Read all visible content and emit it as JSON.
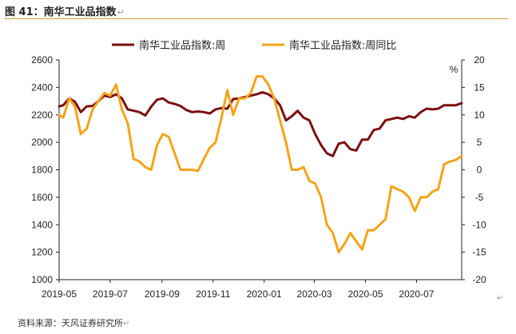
{
  "header": {
    "title": "图 41：南华工业品指数",
    "return_mark": "↵"
  },
  "footer": {
    "source": "资料来源：天风证券研究所",
    "return_mark": "↵"
  },
  "corner": {
    "return_mark": "↵"
  },
  "colors": {
    "primary": "#7b0f12",
    "secondary": "#f4a418",
    "axis": "#222222"
  },
  "chart_data": {
    "type": "line",
    "grid": false,
    "legend": "top-center",
    "x_tick_labels": [
      "2019-05",
      "2019-07",
      "2019-09",
      "2019-11",
      "2020-01",
      "2020-03",
      "2020-05",
      "2020-07"
    ],
    "y_left": {
      "range": [
        1000,
        2600
      ],
      "ticks": [
        1000,
        1200,
        1400,
        1600,
        1800,
        2000,
        2200,
        2400,
        2600
      ]
    },
    "y_right": {
      "label": "%",
      "range": [
        -20,
        20
      ],
      "ticks": [
        -20,
        -15,
        -10,
        -5,
        0,
        5,
        10,
        15,
        20
      ]
    },
    "x": [
      "2019-05-01",
      "2019-05-06",
      "2019-05-13",
      "2019-05-20",
      "2019-05-27",
      "2019-06-03",
      "2019-06-10",
      "2019-06-17",
      "2019-06-24",
      "2019-07-01",
      "2019-07-08",
      "2019-07-15",
      "2019-07-22",
      "2019-07-29",
      "2019-08-05",
      "2019-08-12",
      "2019-08-19",
      "2019-08-26",
      "2019-09-02",
      "2019-09-09",
      "2019-09-16",
      "2019-09-23",
      "2019-09-30",
      "2019-10-07",
      "2019-10-14",
      "2019-10-21",
      "2019-10-28",
      "2019-11-04",
      "2019-11-11",
      "2019-11-18",
      "2019-11-25",
      "2019-12-02",
      "2019-12-09",
      "2019-12-16",
      "2019-12-23",
      "2019-12-30",
      "2020-01-06",
      "2020-01-13",
      "2020-01-20",
      "2020-01-27",
      "2020-02-03",
      "2020-02-10",
      "2020-02-17",
      "2020-02-24",
      "2020-03-02",
      "2020-03-09",
      "2020-03-16",
      "2020-03-23",
      "2020-03-30",
      "2020-04-06",
      "2020-04-13",
      "2020-04-20",
      "2020-04-27",
      "2020-05-04",
      "2020-05-11",
      "2020-05-18",
      "2020-05-25",
      "2020-06-01",
      "2020-06-08",
      "2020-06-15",
      "2020-06-22",
      "2020-06-29",
      "2020-07-06",
      "2020-07-13",
      "2020-07-20",
      "2020-07-27",
      "2020-08-03",
      "2020-08-10",
      "2020-08-17",
      "2020-08-24"
    ],
    "series": [
      {
        "name": "南华工业品指数:周",
        "axis": "left",
        "color": "#7b0f12",
        "values": [
          2262,
          2270,
          2320,
          2295,
          2220,
          2262,
          2265,
          2300,
          2340,
          2330,
          2350,
          2320,
          2240,
          2230,
          2220,
          2195,
          2260,
          2310,
          2320,
          2290,
          2280,
          2265,
          2235,
          2220,
          2225,
          2220,
          2210,
          2240,
          2250,
          2245,
          2315,
          2320,
          2330,
          2340,
          2350,
          2365,
          2350,
          2320,
          2270,
          2160,
          2190,
          2230,
          2180,
          2160,
          2060,
          1980,
          1920,
          1900,
          1990,
          2000,
          1950,
          1940,
          2020,
          2020,
          2090,
          2100,
          2160,
          2170,
          2180,
          2170,
          2190,
          2180,
          2220,
          2245,
          2240,
          2245,
          2270,
          2270,
          2270,
          2285
        ]
      },
      {
        "name": "南华工业品指数:周同比",
        "axis": "right",
        "color": "#f4a418",
        "values": [
          10,
          9.5,
          13,
          11.5,
          6.5,
          7.5,
          11,
          12.5,
          14,
          13.5,
          15.5,
          11,
          8.5,
          2,
          1.5,
          0.5,
          0,
          4.5,
          6.5,
          6,
          3,
          0,
          0,
          0,
          -0.2,
          2,
          4,
          5,
          9.5,
          14.5,
          10,
          13,
          13,
          14,
          17,
          17,
          15.5,
          13,
          9,
          5,
          0,
          0,
          0.5,
          -2,
          -2.5,
          -5,
          -10,
          -11.5,
          -15,
          -13.5,
          -11.5,
          -13,
          -14.5,
          -11,
          -11,
          -10,
          -9,
          -3,
          -3.5,
          -4,
          -5,
          -7.5,
          -5,
          -5,
          -4,
          -3.5,
          1,
          1.5,
          1.8,
          2.5
        ]
      }
    ]
  }
}
